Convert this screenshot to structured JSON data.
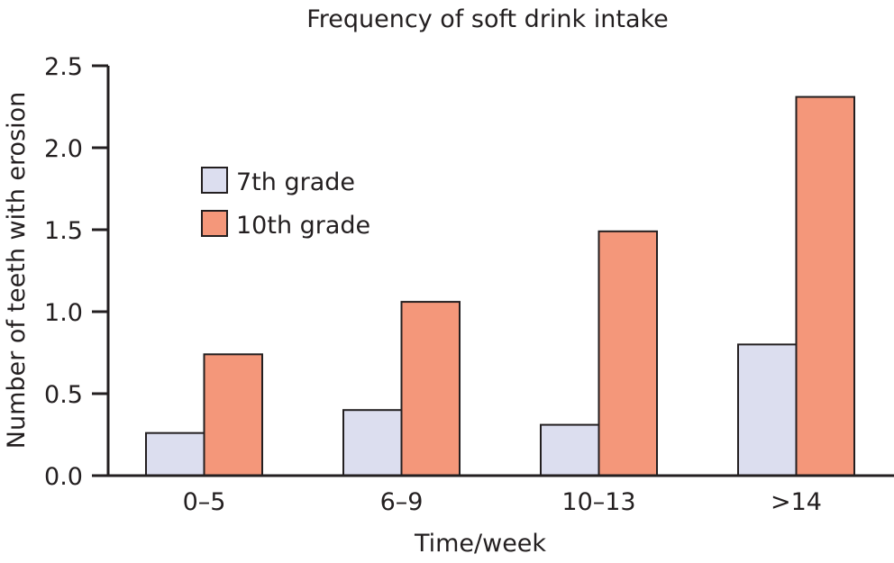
{
  "chart_data": {
    "type": "bar",
    "title": "Frequency of soft drink intake",
    "xlabel": "Time/week",
    "ylabel": "Number of teeth with erosion",
    "categories": [
      "0–5",
      "6–9",
      "10–13",
      ">14"
    ],
    "series": [
      {
        "name": "7th grade",
        "color": "#dcdeef",
        "values": [
          0.26,
          0.4,
          0.31,
          0.8
        ]
      },
      {
        "name": "10th grade",
        "color": "#f4977a",
        "values": [
          0.74,
          1.06,
          1.49,
          2.31
        ]
      }
    ],
    "ylim": [
      0,
      2.5
    ],
    "yticks": [
      "0.0",
      "0.5",
      "1.0",
      "1.5",
      "2.0",
      "2.5"
    ],
    "grid": false,
    "legend_position": "top-left"
  }
}
